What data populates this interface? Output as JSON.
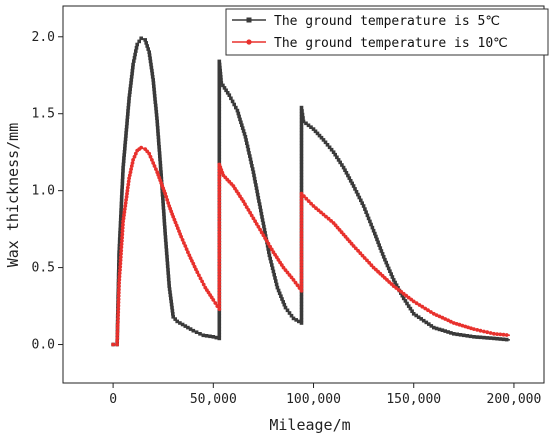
{
  "chart_data": {
    "type": "line",
    "title": "",
    "xlabel": "Mileage/m",
    "ylabel": "Wax thickness/mm",
    "xlim": [
      -25000,
      215000
    ],
    "ylim": [
      -0.25,
      2.2
    ],
    "xticks": [
      0,
      50000,
      100000,
      150000,
      200000
    ],
    "xtick_labels": [
      "0",
      "50,000",
      "100,000",
      "150,000",
      "200,000"
    ],
    "yticks": [
      0.0,
      0.5,
      1.0,
      1.5,
      2.0
    ],
    "ytick_labels": [
      "0.0",
      "0.5",
      "1.0",
      "1.5",
      "2.0"
    ],
    "grid": false,
    "legend": "top-right",
    "series": [
      {
        "name": "The ground temperature is 5℃",
        "color": "#3a3a3a",
        "marker": "square",
        "x": [
          0,
          2000,
          3000,
          5000,
          8000,
          10000,
          12000,
          14000,
          16000,
          18000,
          20000,
          22000,
          24000,
          26000,
          28000,
          30000,
          32000,
          36000,
          40000,
          45000,
          50000,
          53000,
          53000,
          54000,
          58000,
          62000,
          66000,
          70000,
          74000,
          78000,
          82000,
          86000,
          90000,
          94000,
          94000,
          95000,
          100000,
          105000,
          110000,
          115000,
          120000,
          125000,
          130000,
          135000,
          140000,
          145000,
          150000,
          160000,
          170000,
          180000,
          190000,
          198000
        ],
        "y": [
          0.0,
          0.0,
          0.6,
          1.15,
          1.6,
          1.82,
          1.95,
          1.99,
          1.98,
          1.9,
          1.72,
          1.45,
          1.1,
          0.72,
          0.38,
          0.18,
          0.15,
          0.12,
          0.09,
          0.06,
          0.05,
          0.04,
          1.84,
          1.7,
          1.62,
          1.52,
          1.35,
          1.12,
          0.85,
          0.58,
          0.37,
          0.24,
          0.17,
          0.14,
          1.54,
          1.45,
          1.4,
          1.33,
          1.25,
          1.15,
          1.03,
          0.9,
          0.74,
          0.57,
          0.42,
          0.3,
          0.2,
          0.11,
          0.07,
          0.05,
          0.04,
          0.03
        ]
      },
      {
        "name": "The ground temperature is 10℃",
        "color": "#e8312d",
        "marker": "circle",
        "x": [
          0,
          2000,
          3000,
          5000,
          8000,
          10000,
          12000,
          14000,
          16000,
          18000,
          20000,
          22000,
          24000,
          26000,
          28000,
          30000,
          34000,
          38000,
          42000,
          46000,
          50000,
          53000,
          53000,
          55000,
          60000,
          65000,
          70000,
          75000,
          80000,
          85000,
          90000,
          94000,
          94000,
          100000,
          110000,
          120000,
          130000,
          140000,
          150000,
          160000,
          170000,
          180000,
          190000,
          198000
        ],
        "y": [
          0.0,
          0.0,
          0.4,
          0.8,
          1.08,
          1.2,
          1.26,
          1.28,
          1.27,
          1.24,
          1.18,
          1.12,
          1.05,
          0.98,
          0.9,
          0.83,
          0.7,
          0.58,
          0.47,
          0.37,
          0.29,
          0.23,
          1.17,
          1.1,
          1.03,
          0.93,
          0.82,
          0.71,
          0.6,
          0.5,
          0.42,
          0.35,
          0.98,
          0.9,
          0.79,
          0.64,
          0.5,
          0.38,
          0.28,
          0.2,
          0.14,
          0.1,
          0.07,
          0.06
        ]
      }
    ]
  }
}
